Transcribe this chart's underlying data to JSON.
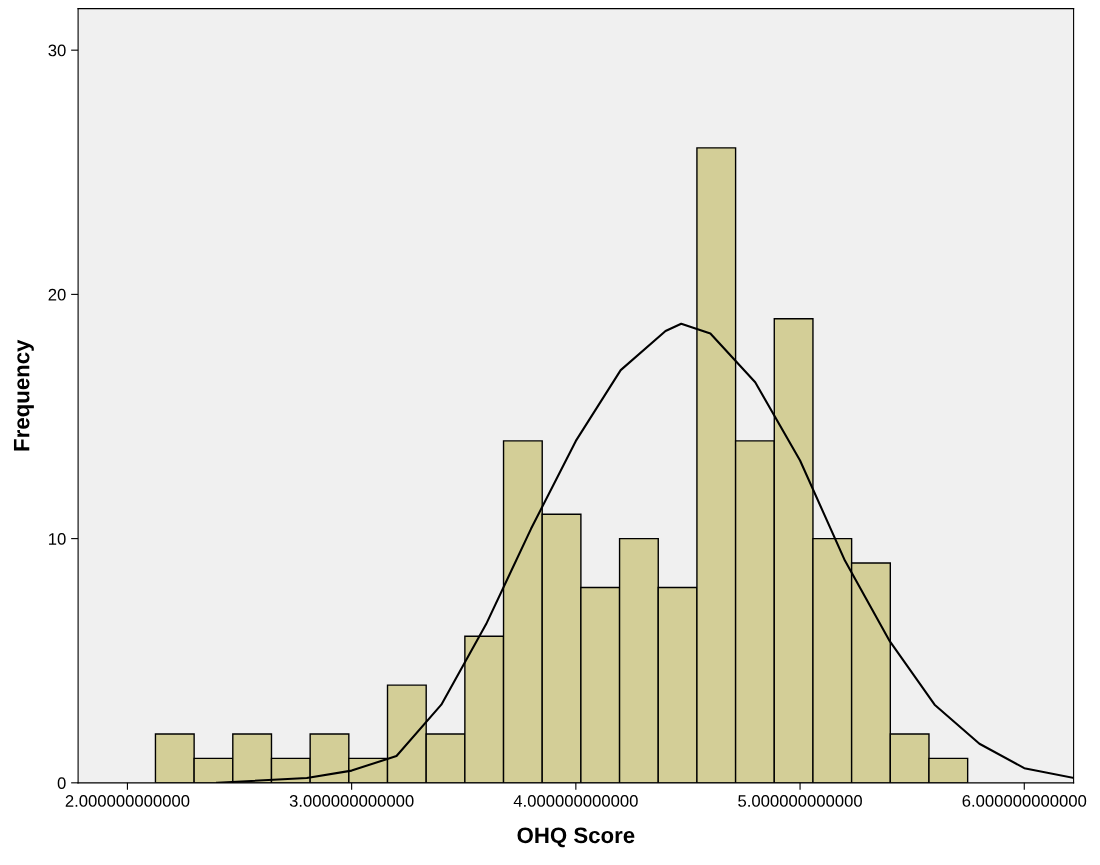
{
  "chart_data": {
    "type": "histogram",
    "xlabel": "OHQ Score",
    "ylabel": "Frequency",
    "bins": [
      2.125,
      2.2975,
      2.47,
      2.6425,
      2.815,
      2.9875,
      3.16,
      3.3325,
      3.505,
      3.6775,
      3.85,
      4.0225,
      4.195,
      4.3675,
      4.54,
      4.7125,
      4.885,
      5.0575,
      5.23,
      5.4025,
      5.575,
      5.7475
    ],
    "values": [
      2,
      1,
      2,
      1,
      2,
      1,
      4,
      2,
      6,
      14,
      11,
      8,
      10,
      8,
      26,
      14,
      19,
      10,
      9,
      2,
      1
    ],
    "color": "#d3ce97",
    "series": [
      {
        "type": "line",
        "color": "#000000",
        "x": [
          2.4,
          2.8,
          3.0,
          3.2,
          3.4,
          3.6,
          3.8,
          4.0,
          4.2,
          4.4,
          4.47,
          4.6,
          4.8,
          5.0,
          5.2,
          5.4,
          5.6,
          5.8,
          6.0,
          6.22
        ],
        "values": [
          0,
          0.2,
          0.5,
          1.1,
          3.2,
          6.5,
          10.4,
          14,
          16.9,
          18.5,
          18.8,
          18.4,
          16.4,
          13.2,
          9.1,
          5.8,
          3.2,
          1.6,
          0.6,
          0.2
        ]
      }
    ],
    "xlim": [
      1.78,
      6.22
    ],
    "ylim": [
      0,
      31.7
    ],
    "xticks": [
      {
        "value": 2,
        "label": "2.000000000000"
      },
      {
        "value": 3,
        "label": "3.000000000000"
      },
      {
        "value": 4,
        "label": "4.000000000000"
      },
      {
        "value": 5,
        "label": "5.000000000000"
      },
      {
        "value": 6,
        "label": "6.000000000000"
      }
    ],
    "yticks": [
      0,
      10,
      20,
      30
    ]
  }
}
